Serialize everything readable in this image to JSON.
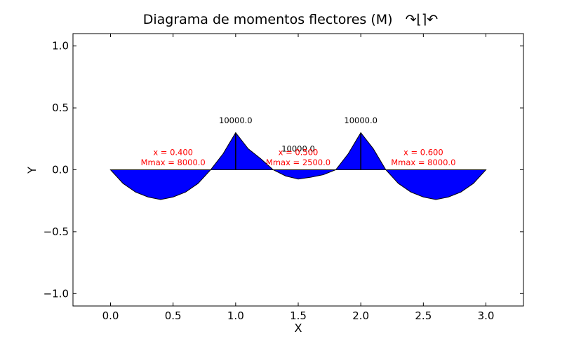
{
  "chart_data": {
    "type": "area",
    "title": "Diagrama de momentos flectores (M)",
    "title_symbol": "↷⌊⌉↶",
    "xlabel": "X",
    "ylabel": "Y",
    "xlim": [
      -0.3,
      3.3
    ],
    "ylim": [
      -1.1,
      1.1
    ],
    "x_ticks": [
      "0.0",
      "0.5",
      "1.0",
      "1.5",
      "2.0",
      "2.5",
      "3.0"
    ],
    "x_tick_values": [
      0,
      0.5,
      1.0,
      1.5,
      2.0,
      2.5,
      3.0
    ],
    "y_ticks": [
      "−1.0",
      "−0.5",
      "0.0",
      "0.5",
      "1.0"
    ],
    "y_tick_values": [
      -1.0,
      -0.5,
      0.0,
      0.5,
      1.0
    ],
    "grid": false,
    "fill_color": "#0000ff",
    "edge_color": "#000000",
    "label_color": "#ff0000",
    "series": [
      {
        "x": [
          0,
          0.1,
          0.2,
          0.3,
          0.4,
          0.5,
          0.6,
          0.7,
          0.8,
          0.9,
          1.0,
          1.1,
          1.2,
          1.3,
          1.4,
          1.5,
          1.6,
          1.7,
          1.8,
          1.9,
          2.0,
          2.1,
          2.2,
          2.3,
          2.4,
          2.5,
          2.6,
          2.7,
          2.8,
          2.9,
          3.0
        ],
        "y": [
          0,
          -0.11,
          -0.18,
          -0.22,
          -0.24,
          -0.22,
          -0.18,
          -0.11,
          0,
          0.13,
          0.3,
          0.17,
          0.09,
          0,
          -0.05,
          -0.075,
          -0.06,
          -0.04,
          0,
          0.13,
          0.3,
          0.17,
          0,
          -0.11,
          -0.18,
          -0.22,
          -0.24,
          -0.22,
          -0.18,
          -0.11,
          0
        ]
      }
    ],
    "support_lines": [
      1.0,
      2.0
    ],
    "annotations": [
      {
        "x": 1.0,
        "y": 0.4,
        "text": "10000.0",
        "color": "#000000"
      },
      {
        "x": 2.0,
        "y": 0.4,
        "text": "10000.0",
        "color": "#000000"
      },
      {
        "x": 1.5,
        "y": 0.17,
        "text": "10000.0",
        "color": "#000000"
      },
      {
        "x": 0.5,
        "y": 0.14,
        "text": "x = 0.400",
        "color": "#ff0000"
      },
      {
        "x": 0.5,
        "y": 0.06,
        "text": "Mmax = 8000.0",
        "color": "#ff0000"
      },
      {
        "x": 1.5,
        "y": 0.14,
        "text": "x = 0.500",
        "color": "#ff0000"
      },
      {
        "x": 1.5,
        "y": 0.06,
        "text": "Mmax = 2500.0",
        "color": "#ff0000"
      },
      {
        "x": 2.5,
        "y": 0.14,
        "text": "x = 0.600",
        "color": "#ff0000"
      },
      {
        "x": 2.5,
        "y": 0.06,
        "text": "Mmax = 8000.0",
        "color": "#ff0000"
      }
    ]
  }
}
